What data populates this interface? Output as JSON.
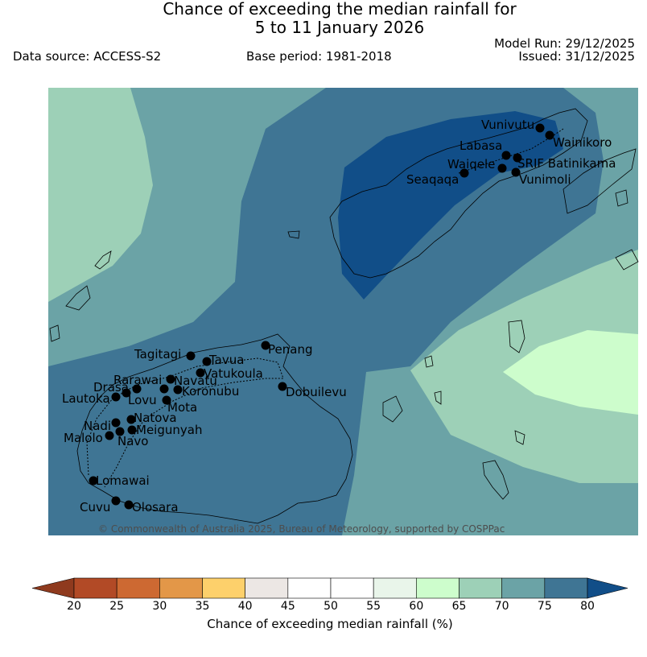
{
  "title": {
    "line1": "Chance of exceeding the median rainfall for",
    "line2": "5 to 11 January 2026"
  },
  "header": {
    "data_source": "Data source: ACCESS-S2",
    "base_period": "Base period: 1981-2018",
    "model_run": "Model Run: 29/12/2025",
    "issued": "Issued: 31/12/2025"
  },
  "copyright": "© Commonwealth of Australia 2025, Bureau of Meteorology, supported by COSPPac",
  "colorbar": {
    "title": "Chance of exceeding median rainfall (%)",
    "ticks": [
      "20",
      "25",
      "30",
      "35",
      "40",
      "45",
      "50",
      "55",
      "60",
      "65",
      "70",
      "75",
      "80"
    ],
    "colors": {
      "under": "#8f3a1e",
      "c20_25": "#b24a26",
      "c25_30": "#cd6932",
      "c30_35": "#e39748",
      "c35_40": "#fdd06b",
      "c40_45": "#ece7e4",
      "c45_50": "#ffffff",
      "c50_55": "#ffffff",
      "c55_60": "#e9f5ea",
      "c60_65": "#cdfdcc",
      "c65_70": "#9dd0b7",
      "c70_75": "#6ba3a6",
      "c75_80": "#3f7594",
      "over": "#114e88"
    }
  },
  "places": [
    {
      "name": "Vunivutu"
    },
    {
      "name": "Wainikoro"
    },
    {
      "name": "Labasa"
    },
    {
      "name": "Waiqele"
    },
    {
      "name": "SRIF Batinikama"
    },
    {
      "name": "Seaqaqa"
    },
    {
      "name": "Vunimoli"
    },
    {
      "name": "Penang"
    },
    {
      "name": "Tagitagi"
    },
    {
      "name": "Tavua"
    },
    {
      "name": "Vatukoula"
    },
    {
      "name": "Rarawai"
    },
    {
      "name": "Navatu"
    },
    {
      "name": "Drasa"
    },
    {
      "name": "Koronubu"
    },
    {
      "name": "Lautoka"
    },
    {
      "name": "Lovu"
    },
    {
      "name": "Mota"
    },
    {
      "name": "Dobuilevu"
    },
    {
      "name": "Natova"
    },
    {
      "name": "Nadi"
    },
    {
      "name": "Meigunyah"
    },
    {
      "name": "Malolo"
    },
    {
      "name": "Navo"
    },
    {
      "name": "Lomawai"
    },
    {
      "name": "Cuvu"
    },
    {
      "name": "Olosara"
    }
  ]
}
